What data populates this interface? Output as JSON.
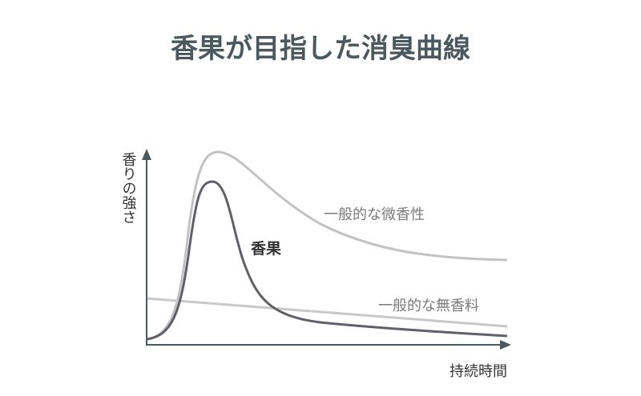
{
  "title": "香果が目指した消臭曲線",
  "y_axis_label": "香りの強さ",
  "x_axis_label": "持続時間",
  "curves": [
    {
      "label": "一般的な微香性"
    },
    {
      "label": "香果"
    },
    {
      "label": "一般的な無香料"
    }
  ]
}
